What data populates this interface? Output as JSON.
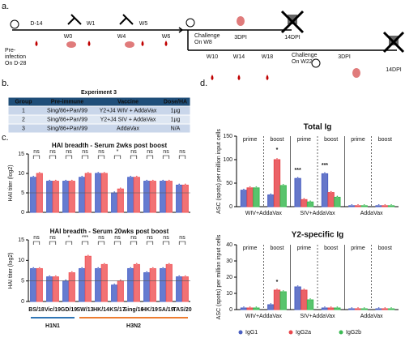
{
  "panel_labels": [
    "a.",
    "b.",
    "c.",
    "d."
  ],
  "timeline": {
    "pre_infection": [
      "Pre-",
      "infection",
      "On D-28"
    ],
    "top_points": [
      "D-14",
      "W0",
      "W1",
      "W4",
      "W5",
      "W6"
    ],
    "challenge_1": [
      "Challenge",
      "On W8"
    ],
    "dpi_1": [
      "3DPI",
      "14DPI"
    ],
    "bottom_points": [
      "W10",
      "W14",
      "W18"
    ],
    "challenge_2": [
      "Challenge",
      "On W22"
    ],
    "dpi_2": [
      "3DPI",
      "14DPI"
    ]
  },
  "table": {
    "title": "Experiment 3",
    "header": [
      "Group",
      "Pre-immune",
      "Vaccine",
      "Dose/HA"
    ],
    "rows": [
      [
        "1",
        "Sing/86+Pan/99",
        "Y2+J4 WIV + AddaVax",
        "1µg"
      ],
      [
        "2",
        "Sing/86+Pan/99",
        "Y2+J4 SIV + AddaVax",
        "1µg"
      ],
      [
        "3",
        "Sing/86+Pan/99",
        "AddaVax",
        "N/A"
      ]
    ]
  },
  "chart_data": [
    {
      "type": "bar",
      "title": "HAI breadth - Serum 2wks post boost",
      "y_label": "HAI titer (log2)",
      "ylim": [
        0,
        15
      ],
      "yticks": [
        0,
        5,
        10,
        15
      ],
      "annotations": [
        "ns",
        "ns",
        "ns",
        "ns",
        "ns",
        "*",
        "ns",
        "ns",
        "ns",
        "ns"
      ],
      "series": [
        {
          "color": "#4a64c8",
          "values": [
            9,
            8,
            8,
            9,
            10,
            5,
            9,
            8,
            8,
            7
          ]
        },
        {
          "color": "#f0595c",
          "values": [
            10,
            8,
            8,
            10,
            10,
            6,
            9,
            8,
            8,
            7
          ]
        }
      ]
    },
    {
      "type": "bar",
      "title": "HAI breadth - Serum 20wks post boost",
      "y_label": "HAI titer (log2)",
      "ylim": [
        0,
        15
      ],
      "yticks": [
        0,
        5,
        10,
        15
      ],
      "categories": [
        "BS/18",
        "Vic/19",
        "GD/19",
        "SW/13",
        "HK/14",
        "KS/17",
        "Sing/16",
        "HK/19",
        "SA/19",
        "TAS/20"
      ],
      "annotations": [
        "ns",
        "ns",
        "*",
        "***",
        "ns",
        "ns",
        "ns",
        "ns",
        "ns",
        "ns"
      ],
      "x_groups": [
        {
          "label": "H1N1",
          "color": "#2f75b5",
          "size": 3
        },
        {
          "label": "H3N2",
          "color": "#ed7d31",
          "size": 7
        }
      ],
      "series": [
        {
          "color": "#4a64c8",
          "values": [
            8,
            6,
            5,
            8,
            8,
            4,
            8,
            7,
            8,
            6
          ]
        },
        {
          "color": "#f0595c",
          "values": [
            8,
            6,
            7,
            11,
            9,
            5,
            9,
            8,
            9,
            6
          ]
        }
      ]
    },
    {
      "type": "grouped_bar",
      "title": "Total Ig",
      "y_label": "ASC (spots) per million input cells",
      "ylim": [
        0,
        150
      ],
      "yticks": [
        0,
        50,
        100,
        150
      ],
      "categories": [
        "prime",
        "boost",
        "prime",
        "boost",
        "prime",
        "boost"
      ],
      "groups": [
        "WIV+AddaVax",
        "SIV+AddaVax",
        "AddaVax"
      ],
      "annotations": [
        "*",
        "***",
        "***"
      ],
      "series": [
        {
          "color": "#4a5fc1",
          "values": [
            35,
            25,
            60,
            70,
            2,
            2
          ]
        },
        {
          "color": "#e8474c",
          "values": [
            40,
            100,
            15,
            30,
            2,
            2
          ]
        },
        {
          "color": "#3cba54",
          "values": [
            40,
            45,
            10,
            20,
            2,
            2
          ]
        }
      ]
    },
    {
      "type": "grouped_bar",
      "title": "Y2-specific Ig",
      "y_label": "ASC (spots) per million input cells",
      "ylim": [
        0,
        40
      ],
      "yticks": [
        0,
        10,
        20,
        30,
        40
      ],
      "categories": [
        "prime",
        "boost",
        "prime",
        "boost",
        "prime",
        "boost"
      ],
      "groups": [
        "WIV+AddaVax",
        "SIV+AddaVax",
        "AddaVax"
      ],
      "annotations": [
        "*"
      ],
      "series": [
        {
          "name": "IgG1",
          "color": "#4a5fc1",
          "values": [
            1,
            3,
            14,
            1,
            0.5,
            0.5
          ]
        },
        {
          "name": "IgG2a",
          "color": "#e8474c",
          "values": [
            1,
            12,
            12,
            1,
            0.5,
            0.5
          ]
        },
        {
          "name": "IgG2b",
          "color": "#3cba54",
          "values": [
            1,
            11,
            6,
            1,
            0.5,
            0.5
          ]
        }
      ]
    }
  ]
}
